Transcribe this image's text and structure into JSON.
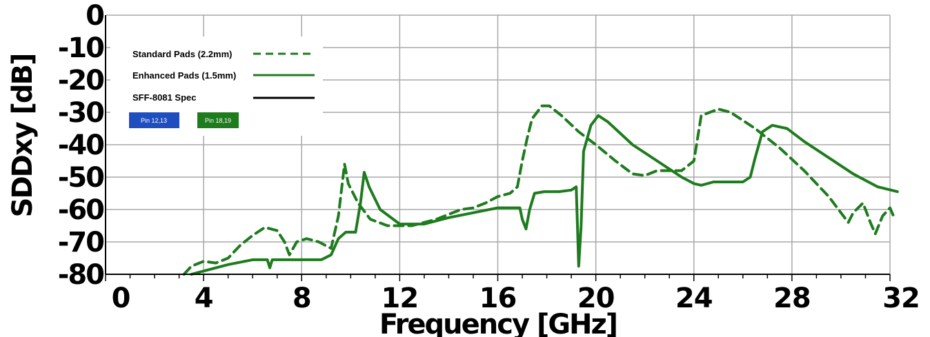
{
  "chart_data": {
    "type": "line",
    "xlabel": "Frequency [GHz]",
    "ylabel": "SDDxy [dB]",
    "xlim": [
      0,
      32
    ],
    "ylim": [
      -80,
      0
    ],
    "xticks": [
      0,
      4,
      8,
      12,
      16,
      20,
      24,
      28,
      32
    ],
    "yticks": [
      0,
      -10,
      -20,
      -30,
      -40,
      -50,
      -60,
      -70,
      -80
    ],
    "grid": true,
    "legend_position": "top-left",
    "series": [
      {
        "name": "Standard Pads (2.2mm)",
        "style": "dashed",
        "color": "#1e7b1e",
        "points": [
          [
            3.2,
            -80
          ],
          [
            3.5,
            -77.5
          ],
          [
            4.0,
            -76
          ],
          [
            4.5,
            -76.5
          ],
          [
            5.0,
            -75
          ],
          [
            5.5,
            -71
          ],
          [
            6.0,
            -68
          ],
          [
            6.5,
            -65.5
          ],
          [
            7.0,
            -66.5
          ],
          [
            7.3,
            -70
          ],
          [
            7.5,
            -74
          ],
          [
            7.8,
            -70
          ],
          [
            8.2,
            -69
          ],
          [
            8.7,
            -70
          ],
          [
            9.2,
            -72
          ],
          [
            9.5,
            -62
          ],
          [
            9.75,
            -46
          ],
          [
            9.9,
            -52
          ],
          [
            10.3,
            -58
          ],
          [
            10.8,
            -63
          ],
          [
            11.5,
            -65
          ],
          [
            12.5,
            -65
          ],
          [
            13.5,
            -63
          ],
          [
            14.5,
            -60
          ],
          [
            15.0,
            -59.5
          ],
          [
            15.5,
            -58
          ],
          [
            16.0,
            -56
          ],
          [
            16.5,
            -55
          ],
          [
            16.8,
            -53
          ],
          [
            17.0,
            -45
          ],
          [
            17.2,
            -38
          ],
          [
            17.4,
            -32
          ],
          [
            17.8,
            -28
          ],
          [
            18.1,
            -28
          ],
          [
            18.6,
            -31
          ],
          [
            19.3,
            -36
          ],
          [
            20.0,
            -40
          ],
          [
            20.8,
            -45
          ],
          [
            21.5,
            -49
          ],
          [
            22.0,
            -49.5
          ],
          [
            22.5,
            -48
          ],
          [
            23.5,
            -48
          ],
          [
            24.0,
            -45
          ],
          [
            24.3,
            -31
          ],
          [
            25.0,
            -29
          ],
          [
            25.5,
            -30
          ],
          [
            26.5,
            -35
          ],
          [
            27.5,
            -41
          ],
          [
            28.5,
            -48
          ],
          [
            29.5,
            -56
          ],
          [
            30.0,
            -61
          ],
          [
            30.3,
            -64
          ],
          [
            30.5,
            -61
          ],
          [
            30.9,
            -58
          ],
          [
            31.2,
            -64
          ],
          [
            31.4,
            -67.5
          ],
          [
            31.7,
            -62
          ],
          [
            32.0,
            -59.5
          ],
          [
            32.2,
            -63
          ]
        ]
      },
      {
        "name": "Enhanced Pads (1.5mm)",
        "style": "solid",
        "color": "#1e7b1e",
        "points": [
          [
            3.5,
            -80
          ],
          [
            4.0,
            -79
          ],
          [
            5.0,
            -77
          ],
          [
            6.0,
            -75.5
          ],
          [
            6.6,
            -75.5
          ],
          [
            6.7,
            -78
          ],
          [
            6.8,
            -75.5
          ],
          [
            8.0,
            -75.5
          ],
          [
            8.8,
            -75.5
          ],
          [
            9.2,
            -74
          ],
          [
            9.5,
            -69
          ],
          [
            9.8,
            -67
          ],
          [
            10.2,
            -67
          ],
          [
            10.4,
            -58
          ],
          [
            10.55,
            -48.5
          ],
          [
            10.75,
            -53
          ],
          [
            11.2,
            -60
          ],
          [
            12.0,
            -64.5
          ],
          [
            13.0,
            -64.5
          ],
          [
            14.0,
            -62.5
          ],
          [
            15.0,
            -61
          ],
          [
            16.0,
            -59.5
          ],
          [
            16.9,
            -59.5
          ],
          [
            17.0,
            -63
          ],
          [
            17.15,
            -66
          ],
          [
            17.3,
            -60
          ],
          [
            17.5,
            -55
          ],
          [
            17.9,
            -54.5
          ],
          [
            18.5,
            -54.5
          ],
          [
            19.0,
            -54
          ],
          [
            19.2,
            -53
          ],
          [
            19.25,
            -65
          ],
          [
            19.3,
            -77.5
          ],
          [
            19.4,
            -65
          ],
          [
            19.5,
            -42
          ],
          [
            19.8,
            -34
          ],
          [
            20.1,
            -31
          ],
          [
            20.5,
            -33
          ],
          [
            21.5,
            -40
          ],
          [
            22.5,
            -45
          ],
          [
            23.5,
            -50
          ],
          [
            24.0,
            -52
          ],
          [
            24.3,
            -52.5
          ],
          [
            24.8,
            -51.5
          ],
          [
            25.5,
            -51.5
          ],
          [
            26.0,
            -51.5
          ],
          [
            26.3,
            -50
          ],
          [
            26.5,
            -44
          ],
          [
            26.8,
            -36
          ],
          [
            27.2,
            -34
          ],
          [
            27.8,
            -35
          ],
          [
            28.5,
            -39
          ],
          [
            29.5,
            -44
          ],
          [
            30.5,
            -49
          ],
          [
            31.5,
            -53
          ],
          [
            32.3,
            -54.5
          ]
        ]
      },
      {
        "name": "SFF-8081 Spec",
        "style": "solid",
        "color": "#000000",
        "points": []
      }
    ],
    "pin_labels": [
      {
        "text": "Pin 12,13",
        "color": "#1f4fbf"
      },
      {
        "text": "Pin 18,19",
        "color": "#1e7b1e"
      }
    ]
  },
  "legend": {
    "items": [
      {
        "label": "Standard Pads (2.2mm)"
      },
      {
        "label": "Enhanced Pads (1.5mm)"
      },
      {
        "label": "SFF-8081 Spec"
      }
    ]
  }
}
